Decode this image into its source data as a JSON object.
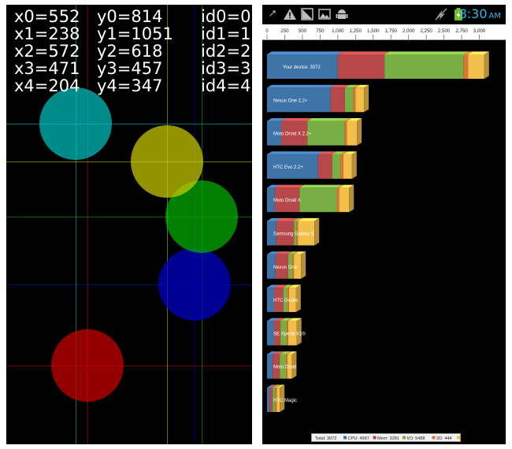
{
  "touch_test": {
    "background": "#000000",
    "rows": [
      {
        "x_label": "x0=552",
        "y_label": "y0=814",
        "id_label": "id0=0"
      },
      {
        "x_label": "x1=238",
        "y_label": "y1=1051",
        "id_label": "id1=1"
      },
      {
        "x_label": "x2=572",
        "y_label": "y2=618",
        "id_label": "id2=2"
      },
      {
        "x_label": "x3=471",
        "y_label": "y3=457",
        "id_label": "id3=3"
      },
      {
        "x_label": "x4=204",
        "y_label": "y4=347",
        "id_label": "id4=4"
      }
    ],
    "points": [
      {
        "id": 0,
        "x": 552,
        "y": 814,
        "color": "#0000cc"
      },
      {
        "id": 1,
        "x": 238,
        "y": 1051,
        "color": "#cc0000"
      },
      {
        "id": 2,
        "x": 572,
        "y": 618,
        "color": "#00b000"
      },
      {
        "id": 3,
        "x": 471,
        "y": 457,
        "color": "#cccc00"
      },
      {
        "id": 4,
        "x": 204,
        "y": 347,
        "color": "#00c0c0"
      }
    ]
  },
  "status_bar": {
    "icons": [
      "usb-icon",
      "warning-icon",
      "signal-icon",
      "image-icon",
      "android-icon",
      "no-network-icon",
      "battery-icon"
    ],
    "time": "8:30",
    "ampm": "AM",
    "accent": "#33b5e5"
  },
  "chart_data": {
    "type": "bar",
    "orientation": "horizontal",
    "stacked": true,
    "ticks": [
      "0",
      "250",
      "500",
      "750",
      "1,000",
      "1,250",
      "1,500",
      "1,750",
      "2,000",
      "2,250",
      "2,500",
      "2,750",
      "3,000"
    ],
    "xlim": [
      0,
      3150
    ],
    "categories": [
      "Your device: 3072",
      "Nexus One 2.2+",
      "Moto Droid X 2.2+",
      "HTC Evo 2.2+",
      "Moto Droid X",
      "Samsung Galaxy S",
      "Nexus One",
      "HTC Desire",
      "SE Xperia X10i",
      "Moto Droid",
      "HTC Magic"
    ],
    "series": [
      {
        "name": "CPU",
        "color": "#3f74a8",
        "values": [
          1000,
          900,
          200,
          720,
          110,
          130,
          120,
          100,
          100,
          80,
          40
        ]
      },
      {
        "name": "Mem",
        "color": "#b6484a",
        "values": [
          660,
          200,
          370,
          200,
          350,
          250,
          180,
          130,
          90,
          100,
          40
        ]
      },
      {
        "name": "I/O",
        "color": "#79ae45",
        "values": [
          1120,
          120,
          530,
          120,
          530,
          40,
          60,
          60,
          90,
          90,
          40
        ]
      },
      {
        "name": "2D",
        "color": "#e3722e",
        "values": [
          60,
          30,
          30,
          40,
          30,
          20,
          20,
          20,
          20,
          20,
          20
        ]
      },
      {
        "name": "3D",
        "color": "#f2c04a",
        "values": [
          230,
          120,
          140,
          120,
          140,
          230,
          100,
          100,
          120,
          60,
          40
        ]
      }
    ],
    "legend_total": "Total: 3072",
    "legend": [
      {
        "label": "CPU: 4997",
        "color": "#3f74a8"
      },
      {
        "label": "Mem: 3281",
        "color": "#b6484a"
      },
      {
        "label": "I/O: 5488",
        "color": "#79ae45"
      },
      {
        "label": "2D: 444",
        "color": "#e3722e"
      },
      {
        "label": "3D: 1152",
        "color": "#f2c04a"
      }
    ]
  }
}
